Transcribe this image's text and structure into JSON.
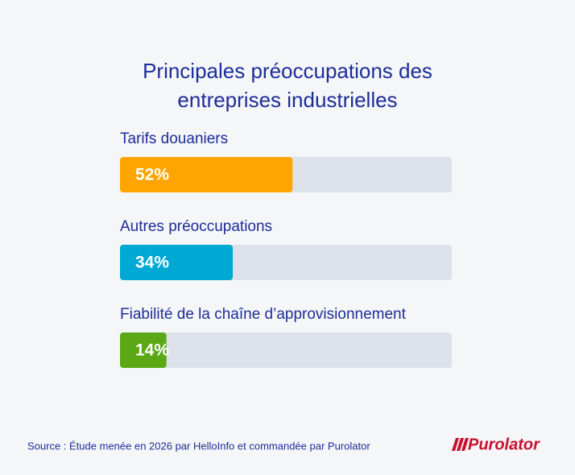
{
  "chart_data": {
    "type": "bar",
    "orientation": "horizontal",
    "title": "Principales préoccupations des entreprises industrielles",
    "categories": [
      "Tarifs douaniers",
      "Autres préoccupations",
      "Fiabilité de la chaîne d’approvisionnement"
    ],
    "values": [
      52,
      34,
      14
    ],
    "value_labels": [
      "52%",
      "34%",
      "14%"
    ],
    "colors": [
      "#ffa400",
      "#00a9d4",
      "#5aa816"
    ],
    "xlim": [
      0,
      100
    ],
    "source": "Source : Étude menée en 2026 par HelloInfo et commandée par Purolator",
    "logo": "Purolator"
  }
}
